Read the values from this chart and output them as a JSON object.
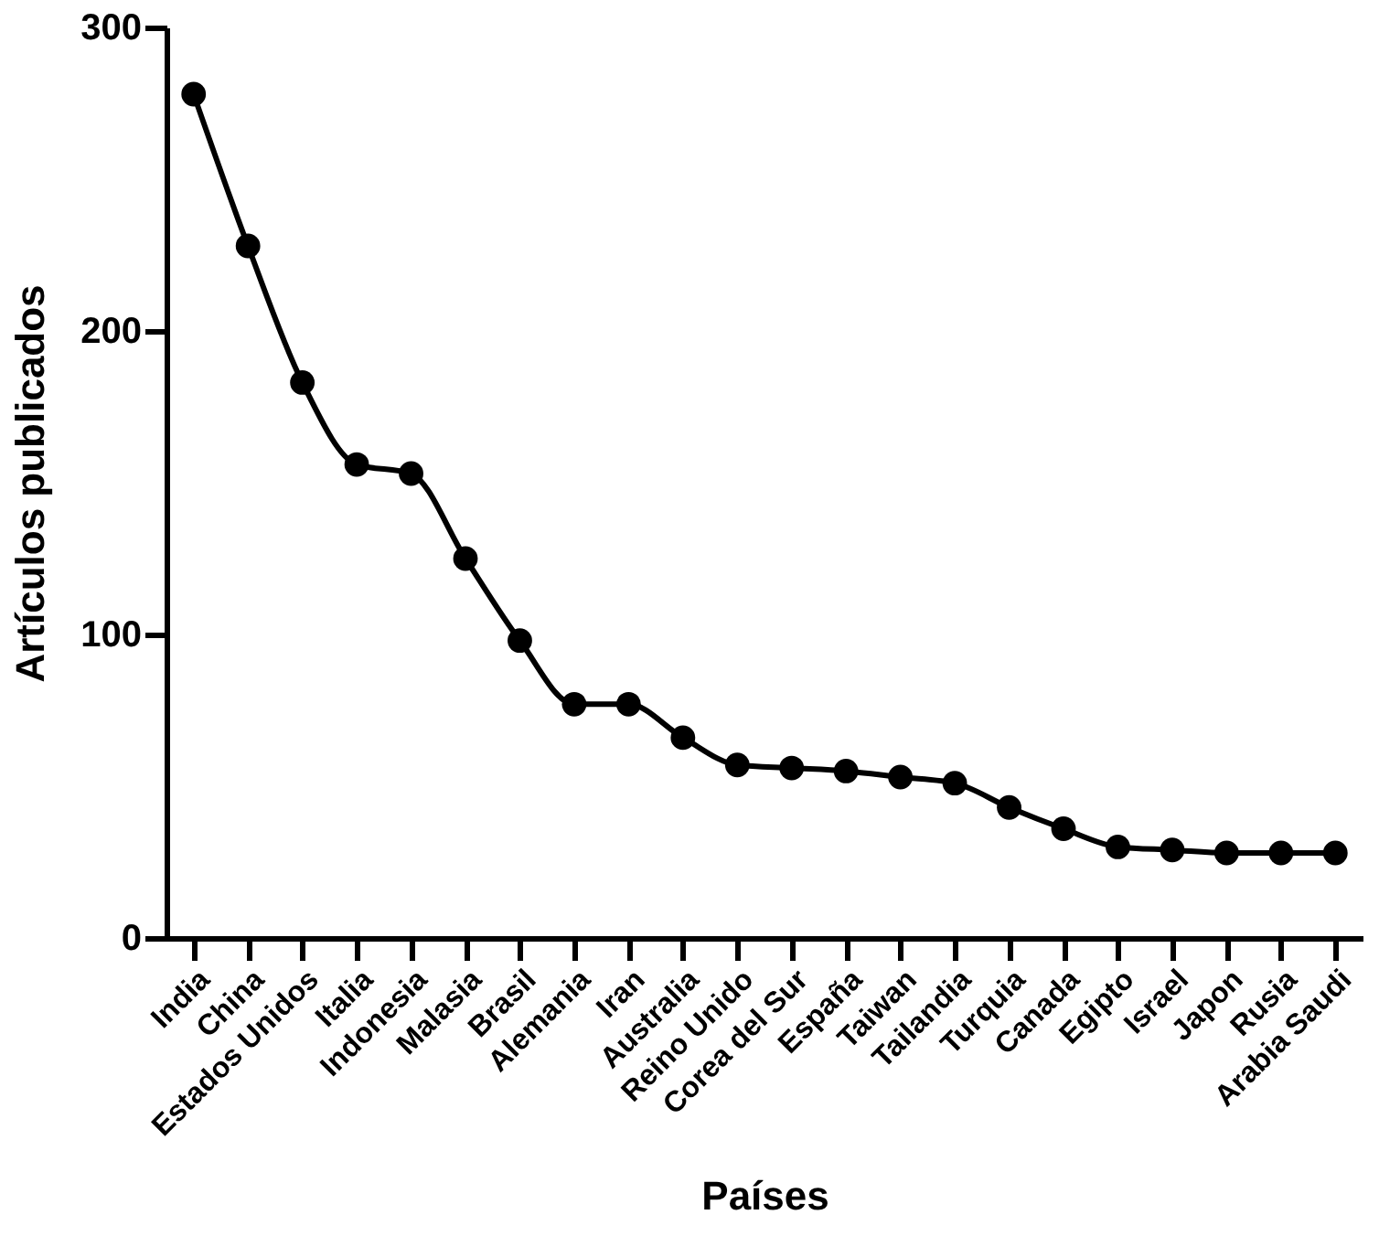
{
  "chart_data": {
    "type": "line",
    "xlabel": "Países",
    "ylabel": "Artículos publicados",
    "categories": [
      "India",
      "China",
      "Estados Unidos",
      "Italia",
      "Indonesia",
      "Malasia",
      "Brasil",
      "Alemania",
      "Iran",
      "Australia",
      "Reino Unido",
      "Corea del Sur",
      "España",
      "Taiwan",
      "Tailandia",
      "Turquia",
      "Canada",
      "Egipto",
      "Israel",
      "Japon",
      "Rusia",
      "Arabia Saudi"
    ],
    "series": [
      {
        "color": "#000000",
        "values": [
          278,
          228,
          183,
          156,
          153,
          125,
          98,
          77,
          77,
          66,
          57,
          56,
          55,
          53,
          51,
          43,
          36,
          30,
          29,
          28,
          28,
          28
        ]
      }
    ],
    "ylim": [
      0,
      300
    ],
    "yticks": [
      0,
      100,
      200,
      300
    ],
    "grid": false,
    "legend": false,
    "marker": "circle",
    "line_style": "solid"
  }
}
